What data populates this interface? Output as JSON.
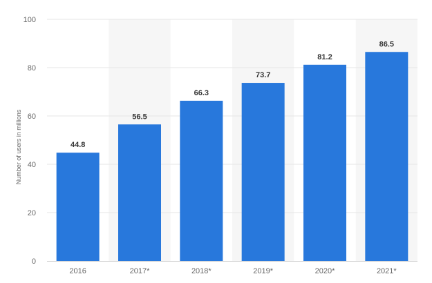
{
  "chart_data": {
    "type": "bar",
    "categories": [
      "2016",
      "2017*",
      "2018*",
      "2019*",
      "2020*",
      "2021*"
    ],
    "values": [
      44.8,
      56.5,
      66.3,
      73.7,
      81.2,
      86.5
    ],
    "value_labels": [
      "44.8",
      "56.5",
      "66.3",
      "73.7",
      "81.2",
      "86.5"
    ],
    "title": "",
    "xlabel": "",
    "ylabel": "Number of users in millions",
    "ylim": [
      0,
      100
    ],
    "yticks": [
      0,
      20,
      40,
      60,
      80,
      100
    ],
    "grid": true,
    "alternate_column_shading": true,
    "bar_color": "#2878dc",
    "shade_color": "#f6f6f6",
    "grid_color": "#e6e6e6",
    "text_color": "#666666",
    "label_color": "#333333"
  }
}
